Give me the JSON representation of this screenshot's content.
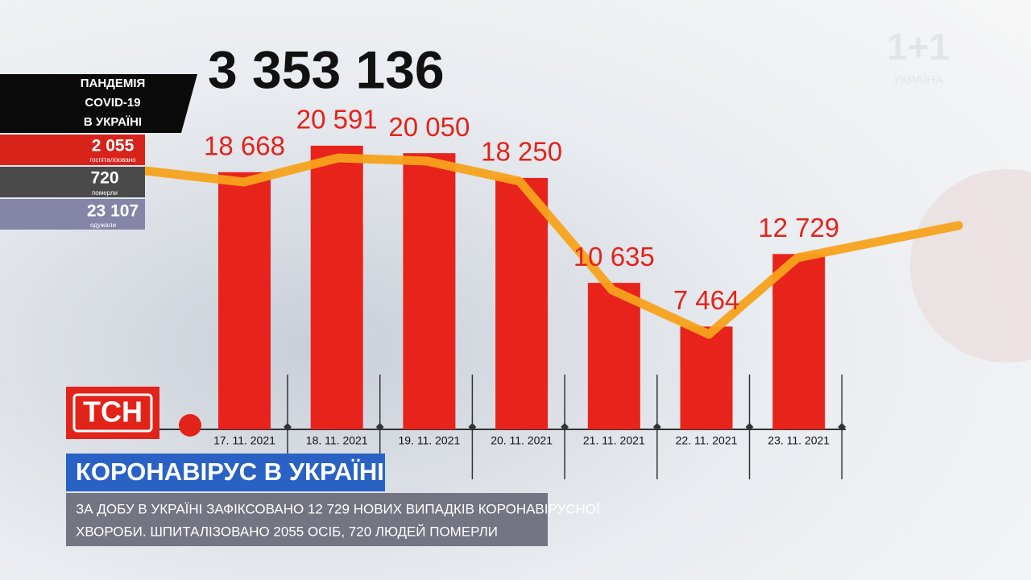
{
  "chart_data": {
    "type": "bar",
    "categories": [
      "17. 11. 2021",
      "18. 11. 2021",
      "19. 11. 2021",
      "20. 11. 2021",
      "21. 11. 2021",
      "22. 11. 2021",
      "23. 11. 2021"
    ],
    "values": [
      18668,
      20591,
      20050,
      18250,
      10635,
      7464,
      12729
    ],
    "value_labels": [
      "18 668",
      "20 591",
      "20 050",
      "18 250",
      "10 635",
      "7 464",
      "12 729"
    ],
    "color": "#e8231c"
  },
  "total": "3 353 136",
  "panel": {
    "title": [
      "ПАНДЕМІЯ",
      "COVID-19",
      "В УКРАЇНІ"
    ],
    "stats": [
      {
        "value": "2 055",
        "label": "госпіталізовано"
      },
      {
        "value": "720",
        "label": "померли"
      },
      {
        "value": "23 107",
        "label": "одужали"
      }
    ]
  },
  "channel": {
    "logo": "1+1",
    "sub": "УКРАЇНА"
  },
  "show": "ТСН",
  "headline": "КОРОНАВІРУС В УКРАЇНІ",
  "ticker": [
    "ЗА ДОБУ В УКРАЇНІ ЗАФІКСОВАНО 12 729 НОВИХ ВИПАДКІВ КОРОНАВІРУСНОЇ",
    "ХВОРОБИ. ШПИТАЛІЗОВАНО 2055 ОСІБ, 720 ЛЮДЕЙ ПОМЕРЛИ"
  ]
}
